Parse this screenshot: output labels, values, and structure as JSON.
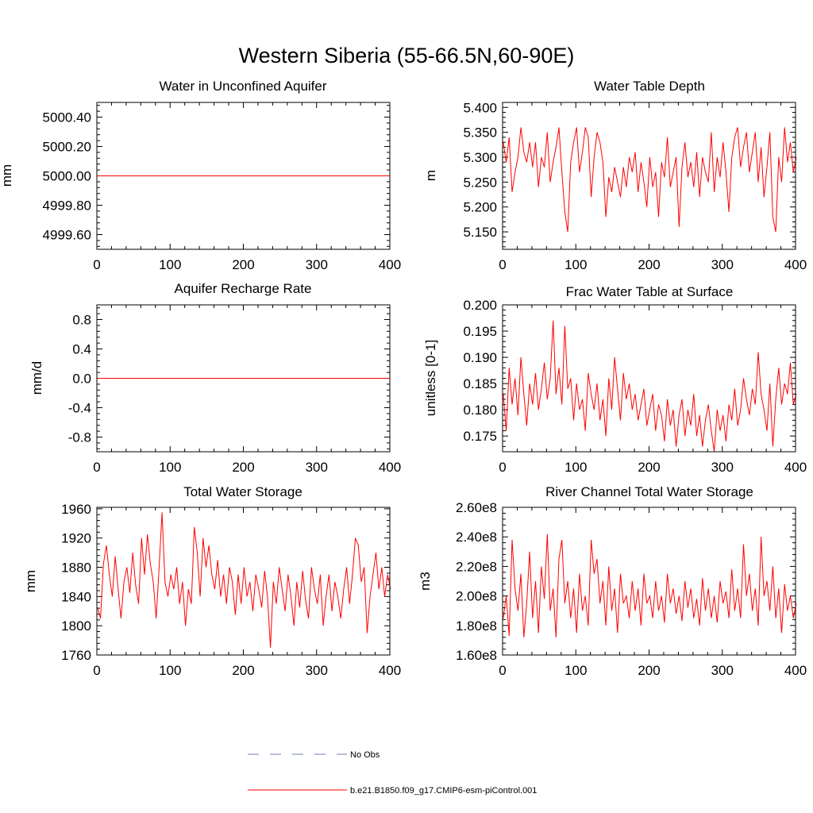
{
  "figure": {
    "title": "Western Siberia (55-66.5N,60-90E)",
    "line_color": "#ff0000",
    "obs_color": "#6f7fb8"
  },
  "legend": {
    "position": "bottom-center",
    "entries": [
      {
        "label": "No Obs",
        "style": "dashed",
        "color": "#6f7fb8"
      },
      {
        "label": "b.e21.B1850.f09_g17.CMIP6-esm-piControl.001",
        "style": "solid",
        "color": "#ff0000"
      }
    ]
  },
  "chart_data": [
    {
      "type": "line",
      "title": "Water in Unconfined Aquifer",
      "ylabel": "mm",
      "xlim": [
        0,
        400
      ],
      "ylim": [
        4999.5,
        5000.5
      ],
      "xticks": [
        0,
        100,
        200,
        300,
        400
      ],
      "xtick_labels": [
        "0",
        "100",
        "200",
        "300",
        "400"
      ],
      "yticks": [
        4999.6,
        4999.8,
        5000.0,
        5000.2,
        5000.4
      ],
      "ytick_labels": [
        "4999.60",
        "4999.80",
        "5000.00",
        "5000.20",
        "5000.40"
      ],
      "series": [
        {
          "color": "#ff0000",
          "x": [
            1,
            400
          ],
          "y": [
            5000.0,
            5000.0
          ]
        }
      ]
    },
    {
      "type": "line",
      "title": "Water Table Depth",
      "ylabel": "m",
      "xlim": [
        0,
        400
      ],
      "ylim": [
        5.115,
        5.41
      ],
      "xticks": [
        0,
        100,
        200,
        300,
        400
      ],
      "xtick_labels": [
        "0",
        "100",
        "200",
        "300",
        "400"
      ],
      "yticks": [
        5.15,
        5.2,
        5.25,
        5.3,
        5.35,
        5.4
      ],
      "ytick_labels": [
        "5.150",
        "5.200",
        "5.250",
        "5.300",
        "5.350",
        "5.400"
      ],
      "series": [
        {
          "color": "#ff0000",
          "x_start": 1,
          "x_step": 4,
          "y": [
            5.33,
            5.29,
            5.34,
            5.23,
            5.27,
            5.3,
            5.36,
            5.31,
            5.29,
            5.33,
            5.28,
            5.33,
            5.24,
            5.3,
            5.28,
            5.35,
            5.25,
            5.29,
            5.32,
            5.36,
            5.27,
            5.19,
            5.15,
            5.29,
            5.33,
            5.36,
            5.27,
            5.31,
            5.36,
            5.34,
            5.22,
            5.3,
            5.35,
            5.33,
            5.29,
            5.18,
            5.26,
            5.23,
            5.28,
            5.25,
            5.22,
            5.28,
            5.24,
            5.3,
            5.27,
            5.31,
            5.23,
            5.29,
            5.25,
            5.2,
            5.3,
            5.24,
            5.27,
            5.18,
            5.29,
            5.26,
            5.34,
            5.24,
            5.27,
            5.3,
            5.16,
            5.28,
            5.33,
            5.26,
            5.29,
            5.24,
            5.31,
            5.22,
            5.3,
            5.27,
            5.25,
            5.35,
            5.23,
            5.3,
            5.26,
            5.33,
            5.27,
            5.19,
            5.3,
            5.34,
            5.36,
            5.28,
            5.32,
            5.35,
            5.27,
            5.31,
            5.35,
            5.25,
            5.32,
            5.22,
            5.28,
            5.35,
            5.18,
            5.15,
            5.3,
            5.25,
            5.36,
            5.29,
            5.33,
            5.27,
            5.3
          ]
        }
      ]
    },
    {
      "type": "line",
      "title": "Aquifer Recharge Rate",
      "ylabel": "mm/d",
      "xlim": [
        0,
        400
      ],
      "ylim": [
        -1.0,
        1.0
      ],
      "xticks": [
        0,
        100,
        200,
        300,
        400
      ],
      "xtick_labels": [
        "0",
        "100",
        "200",
        "300",
        "400"
      ],
      "yticks": [
        -0.8,
        -0.4,
        0.0,
        0.4,
        0.8
      ],
      "ytick_labels": [
        "-0.8",
        "-0.4",
        "0.0",
        "0.4",
        "0.8"
      ],
      "series": [
        {
          "color": "#ff0000",
          "x": [
            1,
            400
          ],
          "y": [
            0.0,
            0.0
          ]
        }
      ]
    },
    {
      "type": "line",
      "title": "Frac Water Table at Surface",
      "ylabel": "unitless [0-1]",
      "xlim": [
        0,
        400
      ],
      "ylim": [
        0.172,
        0.2
      ],
      "xticks": [
        0,
        100,
        200,
        300,
        400
      ],
      "xtick_labels": [
        "0",
        "100",
        "200",
        "300",
        "400"
      ],
      "yticks": [
        0.175,
        0.18,
        0.185,
        0.19,
        0.195,
        0.2
      ],
      "ytick_labels": [
        "0.175",
        "0.180",
        "0.185",
        "0.190",
        "0.195",
        "0.200"
      ],
      "series": [
        {
          "color": "#ff0000",
          "x_start": 1,
          "x_step": 4,
          "y": [
            0.183,
            0.176,
            0.188,
            0.181,
            0.186,
            0.179,
            0.19,
            0.183,
            0.177,
            0.185,
            0.181,
            0.187,
            0.18,
            0.184,
            0.189,
            0.182,
            0.186,
            0.197,
            0.183,
            0.188,
            0.181,
            0.196,
            0.184,
            0.186,
            0.178,
            0.185,
            0.18,
            0.182,
            0.176,
            0.187,
            0.183,
            0.18,
            0.185,
            0.178,
            0.182,
            0.175,
            0.186,
            0.18,
            0.19,
            0.184,
            0.178,
            0.187,
            0.182,
            0.185,
            0.18,
            0.183,
            0.178,
            0.181,
            0.184,
            0.177,
            0.18,
            0.183,
            0.176,
            0.181,
            0.179,
            0.174,
            0.182,
            0.177,
            0.18,
            0.173,
            0.179,
            0.182,
            0.175,
            0.18,
            0.177,
            0.183,
            0.175,
            0.179,
            0.173,
            0.178,
            0.181,
            0.176,
            0.172,
            0.18,
            0.176,
            0.179,
            0.174,
            0.181,
            0.178,
            0.184,
            0.177,
            0.18,
            0.186,
            0.182,
            0.179,
            0.184,
            0.181,
            0.191,
            0.183,
            0.18,
            0.176,
            0.185,
            0.173,
            0.182,
            0.188,
            0.181,
            0.185,
            0.183,
            0.189,
            0.181,
            0.183
          ]
        }
      ]
    },
    {
      "type": "line",
      "title": "Total Water Storage",
      "ylabel": "mm",
      "xlim": [
        0,
        400
      ],
      "ylim": [
        1760,
        1962
      ],
      "xticks": [
        0,
        100,
        200,
        300,
        400
      ],
      "xtick_labels": [
        "0",
        "100",
        "200",
        "300",
        "400"
      ],
      "yticks": [
        1760,
        1800,
        1840,
        1880,
        1920,
        1960
      ],
      "ytick_labels": [
        "1760",
        "1800",
        "1840",
        "1880",
        "1920",
        "1960"
      ],
      "series": [
        {
          "color": "#ff0000",
          "x_start": 1,
          "x_step": 4,
          "y": [
            1825,
            1810,
            1885,
            1910,
            1870,
            1840,
            1895,
            1850,
            1810,
            1860,
            1880,
            1845,
            1900,
            1855,
            1830,
            1920,
            1870,
            1925,
            1885,
            1860,
            1810,
            1880,
            1955,
            1860,
            1840,
            1870,
            1850,
            1880,
            1830,
            1860,
            1800,
            1850,
            1830,
            1935,
            1900,
            1840,
            1920,
            1880,
            1910,
            1870,
            1850,
            1890,
            1840,
            1870,
            1830,
            1880,
            1860,
            1815,
            1870,
            1830,
            1880,
            1840,
            1860,
            1820,
            1870,
            1850,
            1825,
            1875,
            1840,
            1770,
            1860,
            1830,
            1880,
            1850,
            1820,
            1870,
            1840,
            1800,
            1860,
            1825,
            1875,
            1835,
            1810,
            1880,
            1850,
            1830,
            1870,
            1800,
            1840,
            1870,
            1820,
            1860,
            1840,
            1810,
            1850,
            1880,
            1830,
            1870,
            1920,
            1910,
            1860,
            1880,
            1790,
            1840,
            1870,
            1900,
            1850,
            1880,
            1840,
            1870,
            1850
          ]
        }
      ]
    },
    {
      "type": "line",
      "title": "River Channel Total Water Storage",
      "ylabel": "m3",
      "xlim": [
        0,
        400
      ],
      "ylim": [
        160000000,
        260000000
      ],
      "xticks": [
        0,
        100,
        200,
        300,
        400
      ],
      "xtick_labels": [
        "0",
        "100",
        "200",
        "300",
        "400"
      ],
      "yticks": [
        160000000,
        180000000,
        200000000,
        220000000,
        240000000,
        260000000
      ],
      "ytick_labels": [
        "1.60e8",
        "1.80e8",
        "2.00e8",
        "2.20e8",
        "2.40e8",
        "2.60e8"
      ],
      "series": [
        {
          "color": "#ff0000",
          "x_start": 1,
          "x_step": 4,
          "y": [
            185000000,
            200000000,
            173000000,
            238000000,
            205000000,
            190000000,
            215000000,
            172000000,
            195000000,
            230000000,
            185000000,
            210000000,
            175000000,
            220000000,
            198000000,
            242000000,
            190000000,
            205000000,
            172000000,
            225000000,
            238000000,
            195000000,
            210000000,
            185000000,
            205000000,
            175000000,
            215000000,
            190000000,
            200000000,
            180000000,
            238000000,
            215000000,
            225000000,
            195000000,
            210000000,
            180000000,
            220000000,
            190000000,
            205000000,
            175000000,
            215000000,
            195000000,
            200000000,
            185000000,
            210000000,
            190000000,
            205000000,
            180000000,
            215000000,
            195000000,
            200000000,
            185000000,
            210000000,
            190000000,
            200000000,
            182000000,
            215000000,
            195000000,
            205000000,
            188000000,
            200000000,
            183000000,
            210000000,
            192000000,
            205000000,
            185000000,
            198000000,
            180000000,
            212000000,
            190000000,
            205000000,
            185000000,
            200000000,
            182000000,
            210000000,
            195000000,
            203000000,
            185000000,
            218000000,
            190000000,
            205000000,
            185000000,
            235000000,
            200000000,
            215000000,
            190000000,
            205000000,
            180000000,
            240000000,
            200000000,
            210000000,
            190000000,
            220000000,
            185000000,
            205000000,
            175000000,
            208000000,
            190000000,
            200000000,
            185000000,
            195000000
          ]
        }
      ]
    }
  ]
}
